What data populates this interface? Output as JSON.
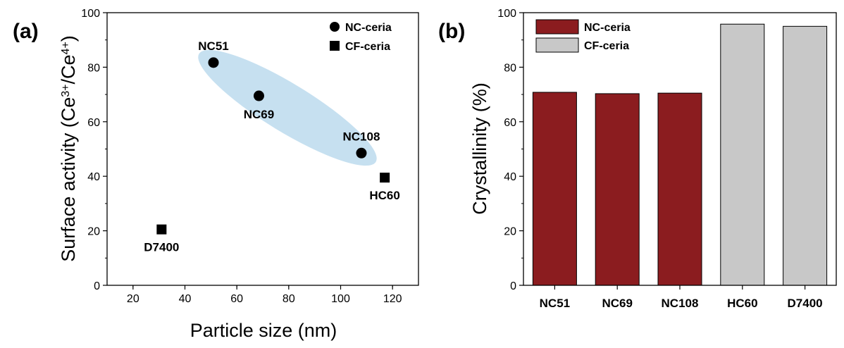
{
  "chart_data": [
    {
      "type": "scatter",
      "panel_label": "(a)",
      "xlabel": "Particle size (nm)",
      "ylabel": {
        "prefix": "Surface activity (Ce",
        "sup1": "3+",
        "middle": "/Ce",
        "sup2": "4+",
        "suffix": ")"
      },
      "xlim": [
        10,
        130
      ],
      "ylim": [
        0,
        100
      ],
      "xticks": [
        20,
        40,
        60,
        80,
        100,
        120
      ],
      "yticks": [
        0,
        20,
        40,
        60,
        80,
        100
      ],
      "legend": {
        "placement": "top-right",
        "entries": [
          {
            "name": "NC-ceria",
            "marker": "circle"
          },
          {
            "name": "CF-ceria",
            "marker": "square"
          }
        ]
      },
      "series": [
        {
          "name": "NC-ceria",
          "marker": "circle",
          "points": [
            {
              "label": "NC51",
              "x": 51,
              "y": 81.7
            },
            {
              "label": "NC69",
              "x": 68.5,
              "y": 69.5
            },
            {
              "label": "NC108",
              "x": 108,
              "y": 48.5
            }
          ]
        },
        {
          "name": "CF-ceria",
          "marker": "square",
          "points": [
            {
              "label": "HC60",
              "x": 117,
              "y": 39.5
            },
            {
              "label": "D7400",
              "x": 31,
              "y": 20.5
            }
          ]
        }
      ],
      "highlight_color": "#c6e0f0",
      "marker_color": "#000000"
    },
    {
      "type": "bar",
      "panel_label": "(b)",
      "ylabel": "Crystallinity (%)",
      "ylim": [
        0,
        100
      ],
      "yticks": [
        0,
        20,
        40,
        60,
        80,
        100
      ],
      "categories": [
        "NC51",
        "NC69",
        "NC108",
        "HC60",
        "D7400"
      ],
      "values": [
        70.8,
        70.3,
        70.5,
        95.8,
        95.0
      ],
      "groups": [
        "NC-ceria",
        "NC-ceria",
        "NC-ceria",
        "CF-ceria",
        "CF-ceria"
      ],
      "legend": {
        "placement": "top-left",
        "entries": [
          {
            "name": "NC-ceria",
            "color": "#8b1c1f"
          },
          {
            "name": "CF-ceria",
            "color": "#c8c8c8"
          }
        ]
      }
    }
  ]
}
